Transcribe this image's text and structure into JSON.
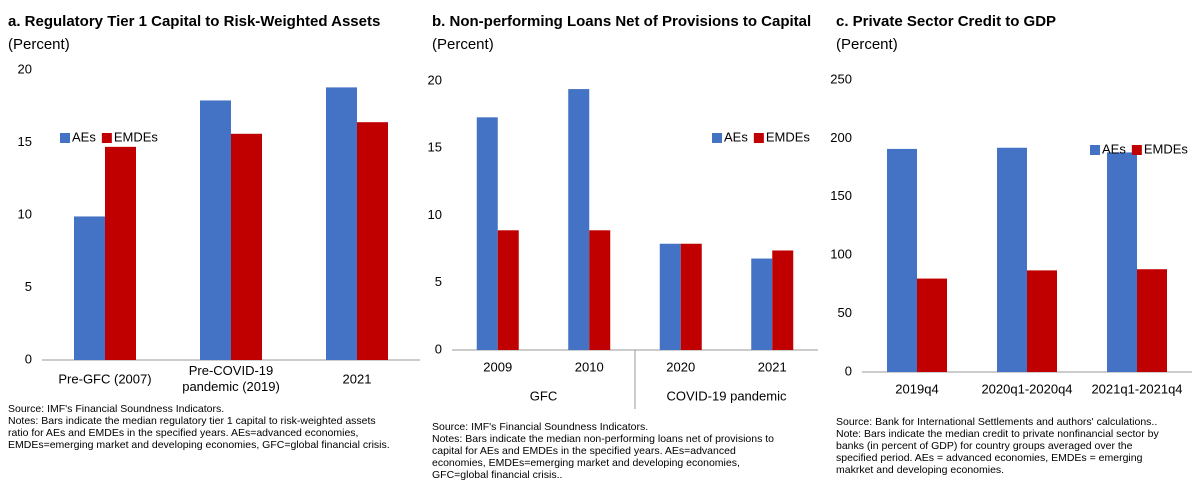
{
  "chart_data": [
    {
      "type": "bar",
      "title": "a. Regulatory Tier 1 Capital to Risk-Weighted Assets",
      "subtitle": "(Percent)",
      "categories": [
        "Pre-GFC (2007)",
        "Pre-COVID-19 pandemic (2019)",
        "2021"
      ],
      "series": [
        {
          "name": "AEs",
          "color": "#4472c4",
          "values": [
            9.9,
            17.9,
            18.8
          ]
        },
        {
          "name": "EMDEs",
          "color": "#c00000",
          "values": [
            14.7,
            15.6,
            16.4
          ]
        }
      ],
      "ylim": [
        0,
        20
      ],
      "yticks": [
        0,
        5,
        10,
        15,
        20
      ],
      "grid": false,
      "legend": "top-left",
      "source": "Source: IMF's Financial Soundness Indicators.",
      "notes": [
        "Notes: Bars indicate the median regulatory tier 1 capital to risk-weighted assets",
        "ratio for AEs and EMDEs in the specified years. AEs=advanced economies,",
        "EMDEs=emerging market and developing economies, GFC=global financial crisis."
      ]
    },
    {
      "type": "bar",
      "title": "b. Non-performing Loans Net of Provisions to Capital",
      "subtitle": "(Percent)",
      "categories": [
        "2009",
        "2010",
        "2020",
        "2021"
      ],
      "groups": [
        "GFC",
        "COVID-19 pandemic"
      ],
      "series": [
        {
          "name": "AEs",
          "color": "#4472c4",
          "values": [
            17.3,
            19.4,
            7.9,
            6.8
          ]
        },
        {
          "name": "EMDEs",
          "color": "#c00000",
          "values": [
            8.9,
            8.9,
            7.9,
            7.4
          ]
        }
      ],
      "ylim": [
        0,
        20
      ],
      "yticks": [
        0,
        5,
        10,
        15,
        20
      ],
      "grid": false,
      "legend": "top-right",
      "source": "Source: IMF's Financial Soundness Indicators.",
      "notes": [
        "Notes: Bars indicate the median non-performing loans net of provisions to",
        "capital for AEs and EMDEs in the specified years. AEs=advanced",
        "economies, EMDEs=emerging market and developing economies,",
        "GFC=global financial crisis.."
      ]
    },
    {
      "type": "bar",
      "title": "c. Private Sector Credit to GDP",
      "subtitle": "(Percent)",
      "categories": [
        "2019q4",
        "2020q1-2020q4",
        "2021q1-2021q4"
      ],
      "series": [
        {
          "name": "AEs",
          "color": "#4472c4",
          "values": [
            191,
            192,
            188
          ]
        },
        {
          "name": "EMDEs",
          "color": "#c00000",
          "values": [
            80,
            87,
            88
          ]
        }
      ],
      "ylim": [
        0,
        250
      ],
      "yticks": [
        0,
        50,
        100,
        150,
        200,
        250
      ],
      "grid": false,
      "legend": "top-right",
      "source": "Source: Bank for International Settlements and authors' calculations..",
      "notes": [
        "Note: Bars indicate the median credit to private nonfinancial sector by",
        "banks (in percent of GDP) for country groups averaged over the",
        "specified period. AEs = advanced economies, EMDEs = emerging",
        "makrket and developing economies."
      ]
    }
  ]
}
